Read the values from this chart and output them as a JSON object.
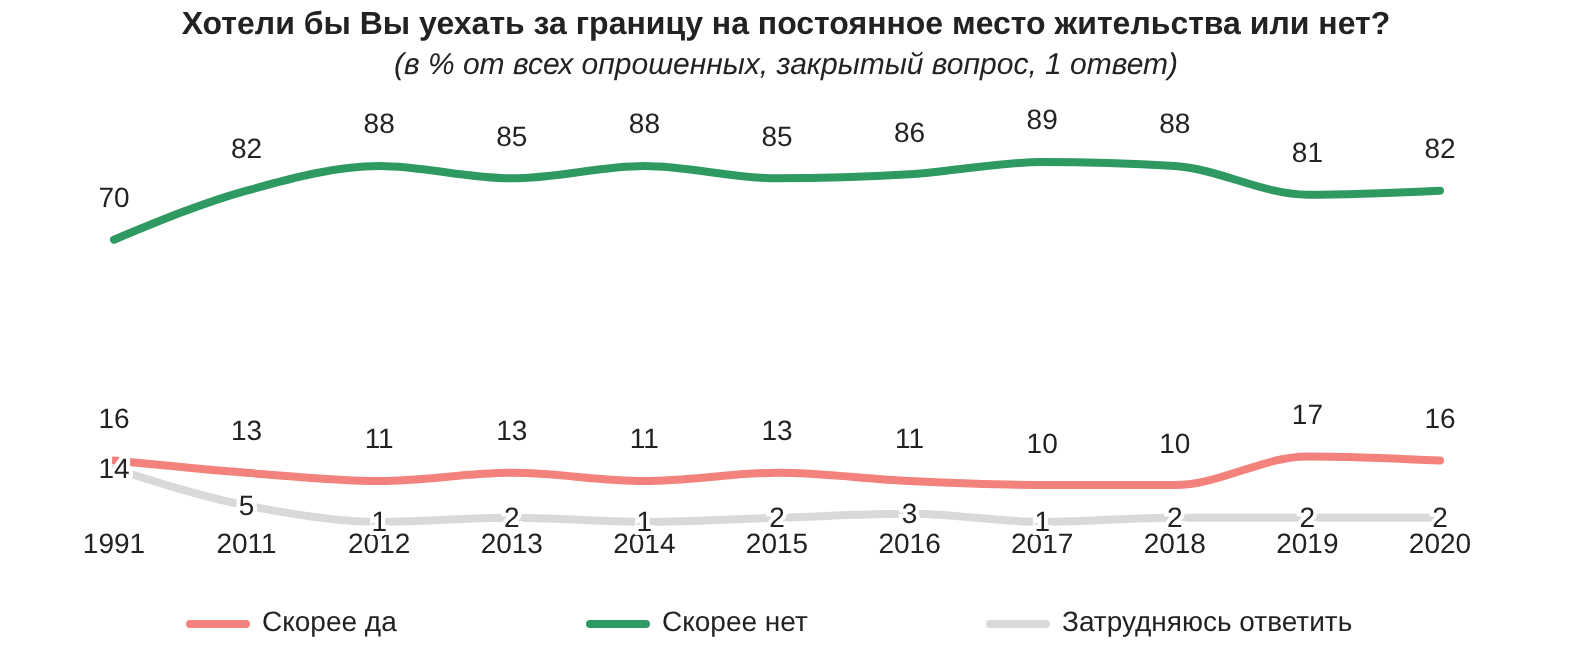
{
  "chart_data": {
    "type": "line",
    "title": "Хотели бы Вы уехать за границу на постоянное место жительства или нет?",
    "subtitle": "(в % от всех опрошенных, закрытый вопрос, 1 ответ)",
    "categories": [
      "1991",
      "2011",
      "2012",
      "2013",
      "2014",
      "2015",
      "2016",
      "2017",
      "2018",
      "2019",
      "2020"
    ],
    "series": [
      {
        "name": "Скорее да",
        "color": "#f4827c",
        "values": [
          16,
          13,
          11,
          13,
          11,
          13,
          11,
          10,
          10,
          17,
          16
        ]
      },
      {
        "name": "Скорее нет",
        "color": "#2e9960",
        "values": [
          70,
          82,
          88,
          85,
          88,
          85,
          86,
          89,
          88,
          81,
          82
        ]
      },
      {
        "name": "Затрудняюсь ответить",
        "color": "#d9d9d9",
        "values": [
          14,
          5,
          1,
          2,
          1,
          2,
          3,
          1,
          2,
          2,
          2
        ]
      }
    ],
    "data_labels": true,
    "legend": "bottom",
    "marker": "none",
    "line_style": "solid",
    "grid": false
  }
}
